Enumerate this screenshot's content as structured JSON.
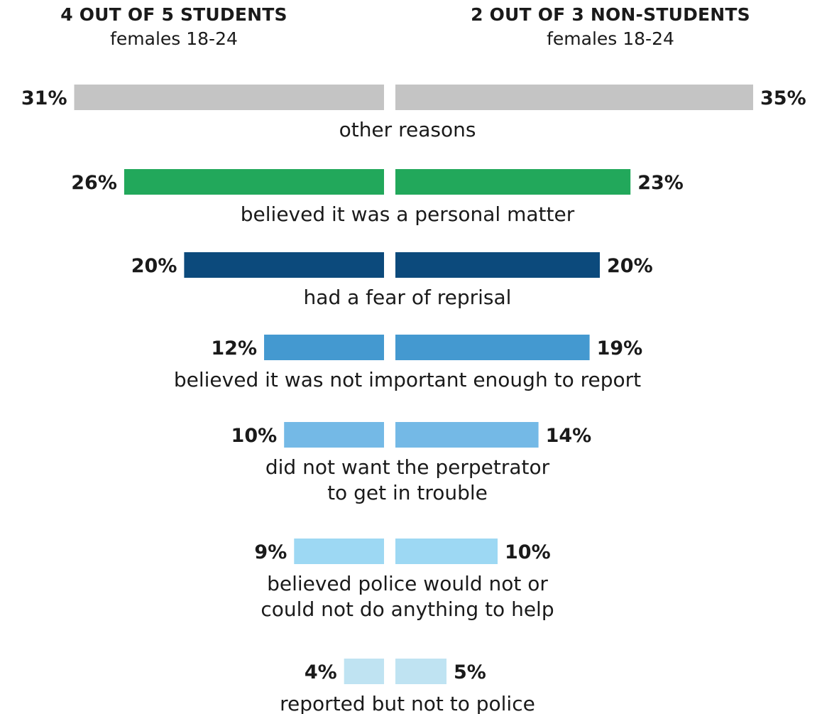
{
  "header": {
    "left_title": "4 OUT OF 5 STUDENTS",
    "left_subtitle": "females 18-24",
    "right_title": "2 OUT OF 3 NON-STUDENTS",
    "right_subtitle": "females 18-24"
  },
  "chart_data": {
    "type": "bar",
    "orientation": "butterfly",
    "series": [
      {
        "name": "4 OUT OF 5 STUDENTS",
        "values": [
          31,
          26,
          20,
          12,
          10,
          9,
          4
        ]
      },
      {
        "name": "2 OUT OF 3 NON-STUDENTS",
        "values": [
          35,
          23,
          20,
          19,
          14,
          10,
          5
        ]
      }
    ],
    "categories": [
      [
        "other reasons"
      ],
      [
        "believed it was a personal matter"
      ],
      [
        "had a fear of reprisal"
      ],
      [
        "believed it was not important enough to report"
      ],
      [
        "did not want the perpetrator",
        "to get in trouble"
      ],
      [
        "believed police would not or",
        "could not do anything to help"
      ],
      [
        "reported but not to police"
      ]
    ],
    "left_labels": [
      "31%",
      "26%",
      "20%",
      "12%",
      "10%",
      "9%",
      "4%"
    ],
    "right_labels": [
      "35%",
      "23%",
      "20%",
      "19%",
      "14%",
      "10%",
      "5%"
    ],
    "colors": [
      "#c4c4c4",
      "#22a85b",
      "#0c4a7c",
      "#4499d0",
      "#74b9e6",
      "#9dd8f3",
      "#bfe3f2"
    ],
    "unit": "%"
  }
}
